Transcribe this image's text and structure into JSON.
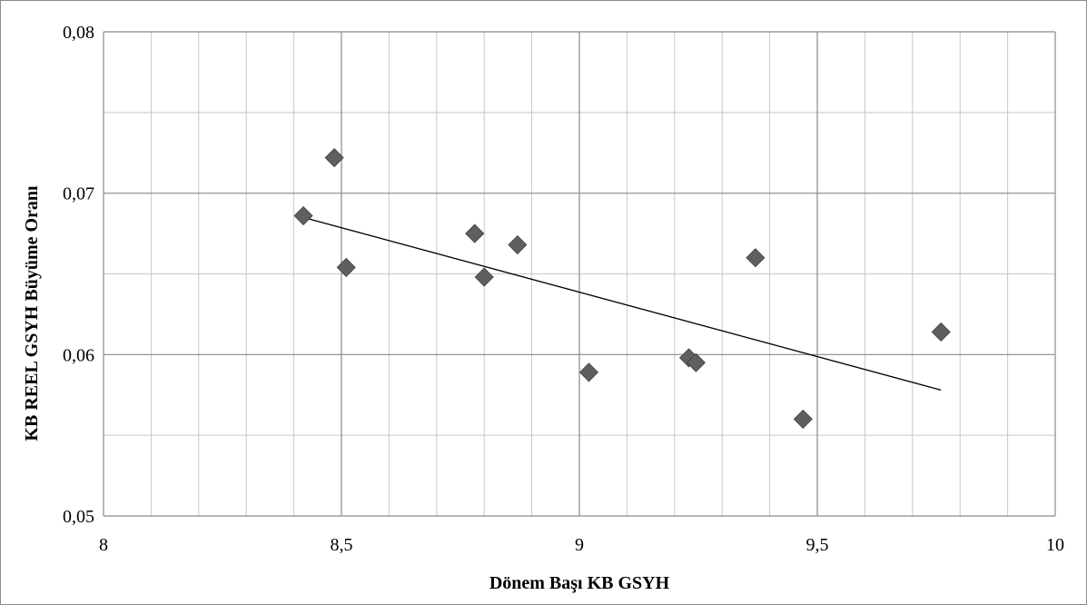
{
  "chart_data": {
    "type": "scatter",
    "title": "",
    "xlabel": "Dönem Başı KB GSYH",
    "ylabel": "KB REEL GSYH Büyüme Oranı",
    "xlim": [
      8,
      10
    ],
    "ylim": [
      0.05,
      0.08
    ],
    "x_ticks": [
      "8",
      "8,5",
      "9",
      "9,5",
      "10"
    ],
    "y_ticks": [
      "0,05",
      "0,06",
      "0,07",
      "0,08"
    ],
    "x_tick_values": [
      8,
      8.5,
      9,
      9.5,
      10
    ],
    "y_tick_values": [
      0.05,
      0.06,
      0.07,
      0.08
    ],
    "grid": true,
    "marker": "diamond",
    "marker_color": "#5f5f5f",
    "series": [
      {
        "x": [
          8.42,
          8.485,
          8.51,
          8.78,
          8.8,
          8.87,
          9.02,
          9.23,
          9.245,
          9.37,
          9.47,
          9.76
        ],
        "values": [
          0.0686,
          0.0722,
          0.0654,
          0.0675,
          0.0648,
          0.0668,
          0.0589,
          0.0598,
          0.0595,
          0.066,
          0.056,
          0.0614
        ]
      }
    ],
    "trendline": {
      "type": "linear",
      "x": [
        8.42,
        9.76
      ],
      "values": [
        0.0685,
        0.0578
      ],
      "color": "#000000"
    }
  }
}
